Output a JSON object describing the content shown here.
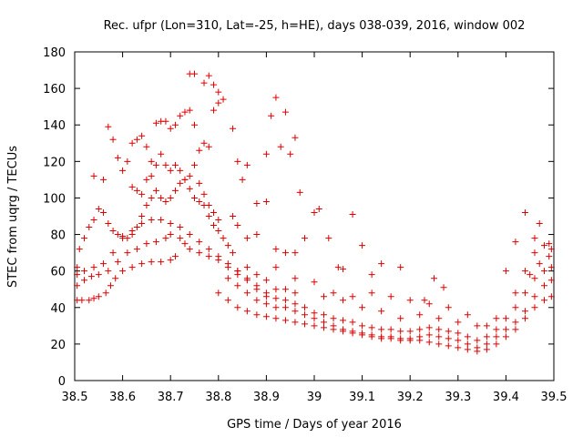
{
  "chart_data": {
    "type": "scatter",
    "title": "Rec. ufpr (Lon=310, Lat=-25, h=HE), days 038-039, 2016, window 002",
    "xlabel": "GPS time / Days of year 2016",
    "ylabel": "STEC from uqrg / TECUs",
    "xlim": [
      38.5,
      39.5
    ],
    "ylim": [
      0,
      180
    ],
    "xticks": [
      "38.5",
      "38.6",
      "38.7",
      "38.8",
      "38.9",
      "39",
      "39.1",
      "39.2",
      "39.3",
      "39.4",
      "39.5"
    ],
    "yticks": [
      "0",
      "20",
      "40",
      "60",
      "80",
      "100",
      "120",
      "140",
      "160",
      "180"
    ],
    "grid": false,
    "legend": "none",
    "marker": "plus",
    "color": "#dd0000",
    "series": [
      {
        "points": [
          [
            38.505,
            44
          ],
          [
            38.515,
            44
          ],
          [
            38.53,
            44
          ],
          [
            38.54,
            45
          ],
          [
            38.55,
            46
          ],
          [
            38.565,
            48
          ],
          [
            38.575,
            52
          ],
          [
            38.585,
            56
          ],
          [
            38.6,
            60
          ],
          [
            38.62,
            62
          ],
          [
            38.64,
            64
          ],
          [
            38.66,
            65
          ],
          [
            38.68,
            65
          ],
          [
            38.7,
            66
          ],
          [
            38.71,
            68
          ],
          [
            38.505,
            52
          ],
          [
            38.52,
            55
          ],
          [
            38.535,
            57
          ],
          [
            38.55,
            58
          ],
          [
            38.57,
            60
          ],
          [
            38.59,
            65
          ],
          [
            38.61,
            70
          ],
          [
            38.63,
            72
          ],
          [
            38.65,
            75
          ],
          [
            38.67,
            76
          ],
          [
            38.69,
            78
          ],
          [
            38.7,
            80
          ],
          [
            38.72,
            78
          ],
          [
            38.73,
            75
          ],
          [
            38.74,
            72
          ],
          [
            38.76,
            70
          ],
          [
            38.78,
            68
          ],
          [
            38.8,
            66
          ],
          [
            38.82,
            62
          ],
          [
            38.84,
            58
          ],
          [
            38.86,
            55
          ],
          [
            38.88,
            52
          ],
          [
            38.9,
            48
          ],
          [
            38.505,
            58
          ],
          [
            38.52,
            60
          ],
          [
            38.54,
            62
          ],
          [
            38.56,
            64
          ],
          [
            38.58,
            70
          ],
          [
            38.6,
            78
          ],
          [
            38.62,
            82
          ],
          [
            38.64,
            86
          ],
          [
            38.66,
            88
          ],
          [
            38.68,
            88
          ],
          [
            38.7,
            86
          ],
          [
            38.72,
            84
          ],
          [
            38.74,
            80
          ],
          [
            38.76,
            76
          ],
          [
            38.78,
            72
          ],
          [
            38.8,
            68
          ],
          [
            38.82,
            64
          ],
          [
            38.84,
            60
          ],
          [
            38.505,
            62
          ],
          [
            38.51,
            72
          ],
          [
            38.52,
            78
          ],
          [
            38.53,
            84
          ],
          [
            38.54,
            88
          ],
          [
            38.55,
            94
          ],
          [
            38.56,
            92
          ],
          [
            38.57,
            86
          ],
          [
            38.58,
            82
          ],
          [
            38.59,
            80
          ],
          [
            38.6,
            79
          ],
          [
            38.61,
            78
          ],
          [
            38.62,
            80
          ],
          [
            38.63,
            84
          ],
          [
            38.64,
            90
          ],
          [
            38.65,
            96
          ],
          [
            38.66,
            100
          ],
          [
            38.67,
            104
          ],
          [
            38.68,
            100
          ],
          [
            38.69,
            98
          ],
          [
            38.7,
            100
          ],
          [
            38.71,
            104
          ],
          [
            38.72,
            108
          ],
          [
            38.73,
            110
          ],
          [
            38.74,
            105
          ],
          [
            38.75,
            100
          ],
          [
            38.76,
            98
          ],
          [
            38.77,
            96
          ],
          [
            38.78,
            90
          ],
          [
            38.79,
            85
          ],
          [
            38.8,
            82
          ],
          [
            38.81,
            78
          ],
          [
            38.82,
            74
          ],
          [
            38.83,
            70
          ],
          [
            38.54,
            112
          ],
          [
            38.56,
            110
          ],
          [
            38.57,
            139
          ],
          [
            38.58,
            132
          ],
          [
            38.59,
            122
          ],
          [
            38.6,
            115
          ],
          [
            38.61,
            120
          ],
          [
            38.62,
            130
          ],
          [
            38.63,
            132
          ],
          [
            38.64,
            134
          ],
          [
            38.65,
            128
          ],
          [
            38.66,
            120
          ],
          [
            38.67,
            141
          ],
          [
            38.68,
            142
          ],
          [
            38.69,
            142
          ],
          [
            38.7,
            138
          ],
          [
            38.71,
            140
          ],
          [
            38.72,
            145
          ],
          [
            38.73,
            147
          ],
          [
            38.74,
            148
          ],
          [
            38.75,
            140
          ],
          [
            38.76,
            126
          ],
          [
            38.77,
            130
          ],
          [
            38.78,
            128
          ],
          [
            38.79,
            148
          ],
          [
            38.8,
            152
          ],
          [
            38.81,
            154
          ],
          [
            38.74,
            168
          ],
          [
            38.75,
            168
          ],
          [
            38.77,
            163
          ],
          [
            38.78,
            167
          ],
          [
            38.79,
            162
          ],
          [
            38.8,
            158
          ],
          [
            38.83,
            138
          ],
          [
            38.85,
            110
          ],
          [
            38.88,
            97
          ],
          [
            38.9,
            124
          ],
          [
            38.91,
            145
          ],
          [
            38.92,
            155
          ],
          [
            38.93,
            128
          ],
          [
            38.94,
            147
          ],
          [
            38.95,
            124
          ],
          [
            38.96,
            133
          ],
          [
            38.97,
            103
          ],
          [
            38.62,
            106
          ],
          [
            38.63,
            104
          ],
          [
            38.64,
            102
          ],
          [
            38.65,
            110
          ],
          [
            38.66,
            112
          ],
          [
            38.67,
            118
          ],
          [
            38.68,
            124
          ],
          [
            38.69,
            118
          ],
          [
            38.7,
            115
          ],
          [
            38.71,
            118
          ],
          [
            38.72,
            115
          ],
          [
            38.73,
            110
          ],
          [
            38.74,
            112
          ],
          [
            38.75,
            118
          ],
          [
            38.76,
            108
          ],
          [
            38.77,
            102
          ],
          [
            38.78,
            96
          ],
          [
            38.79,
            92
          ],
          [
            38.8,
            88
          ],
          [
            38.84,
            120
          ],
          [
            38.86,
            118
          ],
          [
            38.83,
            90
          ],
          [
            38.84,
            85
          ],
          [
            38.86,
            78
          ],
          [
            38.88,
            80
          ],
          [
            38.9,
            98
          ],
          [
            38.92,
            72
          ],
          [
            38.94,
            70
          ],
          [
            38.96,
            70
          ],
          [
            38.98,
            78
          ],
          [
            39.0,
            92
          ],
          [
            39.01,
            94
          ],
          [
            39.03,
            78
          ],
          [
            39.05,
            62
          ],
          [
            38.82,
            56
          ],
          [
            38.84,
            52
          ],
          [
            38.86,
            48
          ],
          [
            38.88,
            44
          ],
          [
            38.9,
            42
          ],
          [
            38.92,
            40
          ],
          [
            38.94,
            40
          ],
          [
            38.96,
            38
          ],
          [
            38.98,
            36
          ],
          [
            39.0,
            34
          ],
          [
            39.02,
            32
          ],
          [
            39.04,
            30
          ],
          [
            39.06,
            28
          ],
          [
            39.08,
            27
          ],
          [
            39.1,
            26
          ],
          [
            39.12,
            25
          ],
          [
            39.14,
            24
          ],
          [
            39.16,
            24
          ],
          [
            39.18,
            23
          ],
          [
            39.2,
            23
          ],
          [
            39.22,
            24
          ],
          [
            39.24,
            25
          ],
          [
            39.26,
            24
          ],
          [
            39.28,
            23
          ],
          [
            39.3,
            22
          ],
          [
            39.32,
            20
          ],
          [
            39.34,
            18
          ],
          [
            39.36,
            20
          ],
          [
            39.38,
            24
          ],
          [
            39.4,
            28
          ],
          [
            39.42,
            32
          ],
          [
            39.44,
            38
          ],
          [
            39.46,
            46
          ],
          [
            39.48,
            52
          ],
          [
            39.495,
            55
          ],
          [
            38.8,
            48
          ],
          [
            38.82,
            44
          ],
          [
            38.84,
            40
          ],
          [
            38.86,
            38
          ],
          [
            38.88,
            36
          ],
          [
            38.9,
            35
          ],
          [
            38.92,
            34
          ],
          [
            38.94,
            33
          ],
          [
            38.96,
            32
          ],
          [
            38.98,
            31
          ],
          [
            39.0,
            30
          ],
          [
            39.02,
            29
          ],
          [
            39.04,
            28
          ],
          [
            39.06,
            27
          ],
          [
            39.08,
            26
          ],
          [
            39.1,
            25
          ],
          [
            39.12,
            24
          ],
          [
            39.14,
            23
          ],
          [
            39.16,
            23
          ],
          [
            39.18,
            22
          ],
          [
            39.2,
            22
          ],
          [
            39.22,
            22
          ],
          [
            39.24,
            21
          ],
          [
            39.26,
            20
          ],
          [
            39.28,
            19
          ],
          [
            39.3,
            18
          ],
          [
            39.32,
            17
          ],
          [
            39.34,
            16
          ],
          [
            39.36,
            17
          ],
          [
            39.38,
            20
          ],
          [
            39.4,
            24
          ],
          [
            39.42,
            28
          ],
          [
            39.44,
            34
          ],
          [
            39.46,
            40
          ],
          [
            39.48,
            44
          ],
          [
            39.495,
            46
          ],
          [
            38.84,
            60
          ],
          [
            38.86,
            56
          ],
          [
            38.88,
            50
          ],
          [
            38.9,
            46
          ],
          [
            38.92,
            45
          ],
          [
            38.94,
            44
          ],
          [
            38.96,
            42
          ],
          [
            38.98,
            40
          ],
          [
            39.0,
            37
          ],
          [
            39.02,
            36
          ],
          [
            39.04,
            34
          ],
          [
            39.06,
            33
          ],
          [
            39.08,
            32
          ],
          [
            39.1,
            30
          ],
          [
            39.12,
            29
          ],
          [
            39.14,
            28
          ],
          [
            39.16,
            28
          ],
          [
            39.18,
            27
          ],
          [
            39.2,
            27
          ],
          [
            39.22,
            28
          ],
          [
            39.24,
            29
          ],
          [
            39.26,
            28
          ],
          [
            39.28,
            27
          ],
          [
            39.3,
            26
          ],
          [
            39.32,
            24
          ],
          [
            39.34,
            22
          ],
          [
            39.36,
            24
          ],
          [
            39.38,
            28
          ],
          [
            39.4,
            34
          ],
          [
            39.42,
            40
          ],
          [
            39.44,
            48
          ],
          [
            39.46,
            56
          ],
          [
            39.48,
            60
          ],
          [
            39.495,
            62
          ],
          [
            38.86,
            62
          ],
          [
            38.88,
            58
          ],
          [
            38.9,
            55
          ],
          [
            38.92,
            50
          ],
          [
            38.94,
            50
          ],
          [
            38.96,
            48
          ],
          [
            39.02,
            46
          ],
          [
            39.06,
            44
          ],
          [
            39.1,
            40
          ],
          [
            39.14,
            38
          ],
          [
            39.18,
            34
          ],
          [
            39.22,
            36
          ],
          [
            39.26,
            34
          ],
          [
            39.3,
            32
          ],
          [
            39.34,
            30
          ],
          [
            39.38,
            34
          ],
          [
            39.42,
            48
          ],
          [
            39.45,
            58
          ],
          [
            39.47,
            64
          ],
          [
            39.49,
            68
          ],
          [
            38.92,
            62
          ],
          [
            38.96,
            56
          ],
          [
            39.0,
            54
          ],
          [
            39.04,
            48
          ],
          [
            39.08,
            46
          ],
          [
            39.12,
            48
          ],
          [
            39.16,
            46
          ],
          [
            39.2,
            44
          ],
          [
            39.24,
            42
          ],
          [
            39.28,
            40
          ],
          [
            39.32,
            36
          ],
          [
            39.36,
            30
          ],
          [
            39.44,
            60
          ],
          [
            39.46,
            70
          ],
          [
            39.48,
            74
          ],
          [
            39.495,
            72
          ],
          [
            39.06,
            61
          ],
          [
            39.1,
            74
          ],
          [
            39.12,
            58
          ],
          [
            39.14,
            64
          ],
          [
            39.08,
            91
          ],
          [
            39.18,
            62
          ],
          [
            39.23,
            44
          ],
          [
            39.25,
            56
          ],
          [
            39.27,
            51
          ],
          [
            39.4,
            60
          ],
          [
            39.42,
            76
          ],
          [
            39.44,
            92
          ],
          [
            39.46,
            78
          ],
          [
            39.47,
            86
          ],
          [
            39.49,
            75
          ]
        ]
      }
    ]
  }
}
